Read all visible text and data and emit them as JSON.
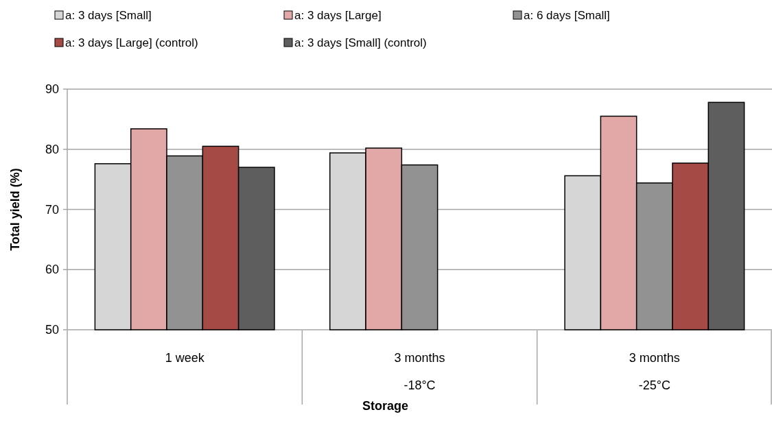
{
  "chart_data": {
    "type": "bar",
    "xlabel": "Storage",
    "ylabel": "Total yield (%)",
    "categories": [
      "1 week",
      "3 months\n-18°C",
      "3 months\n-25°C"
    ],
    "series": [
      {
        "name": "a: 3 days [Small]",
        "color": "#d6d6d6",
        "values": [
          77.6,
          79.4,
          75.6
        ]
      },
      {
        "name": "a: 3 days [Large]",
        "color": "#e2a8a8",
        "values": [
          83.4,
          80.2,
          85.5
        ]
      },
      {
        "name": "a: 6 days [Small]",
        "color": "#929292",
        "values": [
          78.9,
          77.4,
          74.4
        ]
      },
      {
        "name": "a: 3 days [Large] (control)",
        "color": "#a54a45",
        "values": [
          80.5,
          null,
          77.7
        ]
      },
      {
        "name": "a: 3 days [Small] (control)",
        "color": "#5e5e5e",
        "values": [
          77.0,
          null,
          87.8
        ]
      }
    ],
    "ylim": [
      50,
      90
    ],
    "yticks": [
      50,
      60,
      70,
      80,
      90
    ],
    "grid": "y",
    "legend": "top"
  }
}
